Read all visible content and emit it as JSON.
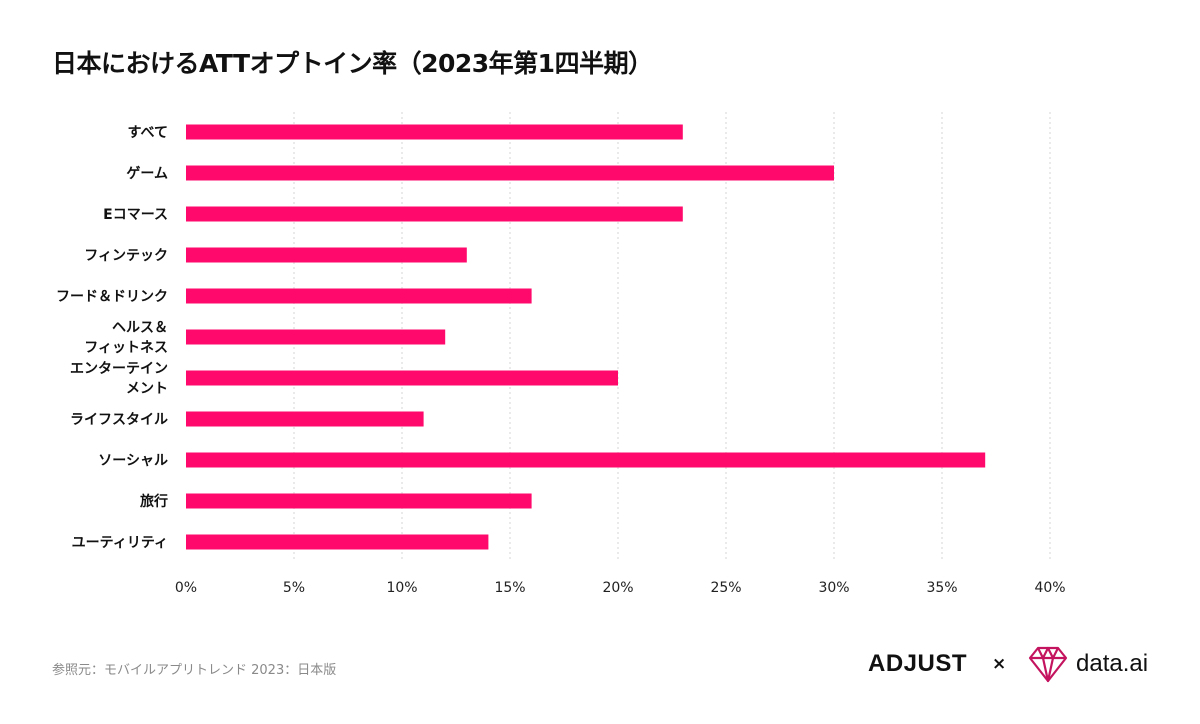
{
  "title": "日本におけるATTオプトイン率（2023年第1四半期）",
  "source": "参照元：モバイルアプリトレンド 2023：日本版",
  "logos": {
    "adjust": "ADJUST",
    "separator": "×",
    "dataai": "data.ai"
  },
  "colors": {
    "bar": "#FF0A6C",
    "grid": "#D4D4D4",
    "logo_gem": "#C4145F"
  },
  "chart_data": {
    "type": "bar",
    "orientation": "horizontal",
    "categories": [
      [
        "すべて"
      ],
      [
        "ゲーム"
      ],
      [
        "Eコマース"
      ],
      [
        "フィンテック"
      ],
      [
        "フード＆ドリンク"
      ],
      [
        "ヘルス＆",
        "フィットネス"
      ],
      [
        "エンターテイン",
        "メント"
      ],
      [
        "ライフスタイル"
      ],
      [
        "ソーシャル"
      ],
      [
        "旅行"
      ],
      [
        "ユーティリティ"
      ]
    ],
    "values": [
      23,
      30,
      23,
      13,
      16,
      12,
      20,
      11,
      37,
      16,
      14
    ],
    "xlim": [
      0,
      40
    ],
    "xticks": [
      0,
      5,
      10,
      15,
      20,
      25,
      30,
      35,
      40
    ],
    "tick_suffix": "%",
    "grid": true
  }
}
